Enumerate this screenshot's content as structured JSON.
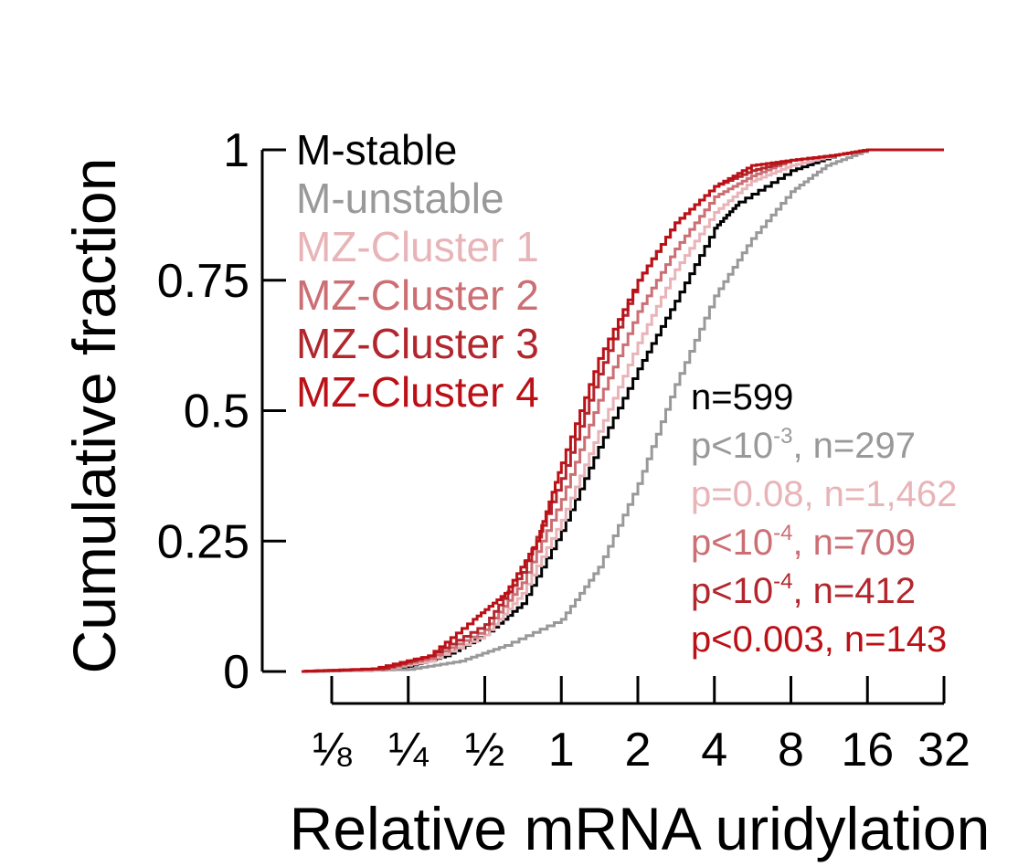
{
  "chart_data": {
    "type": "line",
    "subtype": "cumulative-distribution",
    "xlabel": "Relative mRNA uridylation",
    "ylabel": "Cumulative fraction",
    "x_scale": "log2",
    "xlim": [
      0.09,
      32
    ],
    "ylim": [
      0,
      1
    ],
    "x_ticks": [
      0.125,
      0.25,
      0.5,
      1,
      2,
      4,
      8,
      16,
      32
    ],
    "x_tick_labels": [
      "⅛",
      "¼",
      "½",
      "1",
      "2",
      "4",
      "8",
      "16",
      "32"
    ],
    "y_ticks": [
      0,
      0.25,
      0.5,
      0.75,
      1
    ],
    "y_tick_labels": [
      "0",
      "0.25",
      "0.5",
      "0.75",
      "1"
    ],
    "grid": false,
    "legend_position": "top-left",
    "series": [
      {
        "name": "M-stable",
        "color": "#000000",
        "stat": "n=599",
        "points": [
          [
            0.09,
            0
          ],
          [
            0.2,
            0.003
          ],
          [
            0.25,
            0.01
          ],
          [
            0.35,
            0.03
          ],
          [
            0.5,
            0.07
          ],
          [
            0.7,
            0.13
          ],
          [
            1,
            0.27
          ],
          [
            1.4,
            0.43
          ],
          [
            2,
            0.58
          ],
          [
            2.8,
            0.71
          ],
          [
            4,
            0.85
          ],
          [
            5,
            0.9
          ],
          [
            8,
            0.96
          ],
          [
            12,
            0.99
          ],
          [
            16,
            1
          ],
          [
            32,
            1
          ]
        ]
      },
      {
        "name": "M-unstable",
        "color": "#999999",
        "stat_prefix": "p<10",
        "stat_exp": "-3",
        "stat_suffix": ", n=297",
        "points": [
          [
            0.09,
            0
          ],
          [
            0.25,
            0.004
          ],
          [
            0.4,
            0.02
          ],
          [
            0.6,
            0.05
          ],
          [
            1,
            0.1
          ],
          [
            1.4,
            0.2
          ],
          [
            2,
            0.36
          ],
          [
            2.8,
            0.55
          ],
          [
            4,
            0.72
          ],
          [
            5.6,
            0.83
          ],
          [
            8,
            0.92
          ],
          [
            11,
            0.97
          ],
          [
            16,
            1
          ],
          [
            32,
            1
          ]
        ]
      },
      {
        "name": "MZ-Cluster 1",
        "color": "#e8b4b8",
        "stat": "p=0.08, n=1,462",
        "points": [
          [
            0.09,
            0
          ],
          [
            0.2,
            0.004
          ],
          [
            0.3,
            0.02
          ],
          [
            0.5,
            0.07
          ],
          [
            0.7,
            0.15
          ],
          [
            1,
            0.29
          ],
          [
            1.4,
            0.46
          ],
          [
            2,
            0.63
          ],
          [
            2.8,
            0.77
          ],
          [
            4,
            0.88
          ],
          [
            5.6,
            0.94
          ],
          [
            8,
            0.97
          ],
          [
            12,
            0.99
          ],
          [
            16,
            1
          ],
          [
            32,
            1
          ]
        ]
      },
      {
        "name": "MZ-Cluster 2",
        "color": "#cc6f74",
        "stat_prefix": "p<10",
        "stat_exp": "-4",
        "stat_suffix": ", n=709",
        "points": [
          [
            0.09,
            0
          ],
          [
            0.2,
            0.005
          ],
          [
            0.3,
            0.025
          ],
          [
            0.5,
            0.08
          ],
          [
            0.7,
            0.17
          ],
          [
            1,
            0.33
          ],
          [
            1.4,
            0.52
          ],
          [
            2,
            0.69
          ],
          [
            2.8,
            0.81
          ],
          [
            4,
            0.91
          ],
          [
            5.6,
            0.95
          ],
          [
            8,
            0.98
          ],
          [
            12,
            0.99
          ],
          [
            16,
            1
          ],
          [
            32,
            1
          ]
        ]
      },
      {
        "name": "MZ-Cluster 3",
        "color": "#b2262d",
        "stat_prefix": "p<10",
        "stat_exp": "-4",
        "stat_suffix": ", n=412",
        "points": [
          [
            0.09,
            0
          ],
          [
            0.2,
            0.006
          ],
          [
            0.3,
            0.03
          ],
          [
            0.5,
            0.09
          ],
          [
            0.7,
            0.19
          ],
          [
            1,
            0.37
          ],
          [
            1.4,
            0.57
          ],
          [
            2,
            0.75
          ],
          [
            2.8,
            0.86
          ],
          [
            4,
            0.93
          ],
          [
            5.6,
            0.96
          ],
          [
            8,
            0.98
          ],
          [
            12,
            0.99
          ],
          [
            16,
            1
          ],
          [
            32,
            1
          ]
        ]
      },
      {
        "name": "MZ-Cluster 4",
        "color": "#bb1016",
        "stat": "p<0.003, n=143",
        "points": [
          [
            0.09,
            0
          ],
          [
            0.18,
            0.005
          ],
          [
            0.3,
            0.03
          ],
          [
            0.45,
            0.1
          ],
          [
            0.6,
            0.15
          ],
          [
            0.8,
            0.25
          ],
          [
            1,
            0.4
          ],
          [
            1.4,
            0.6
          ],
          [
            2,
            0.75
          ],
          [
            2.8,
            0.86
          ],
          [
            4,
            0.93
          ],
          [
            5.6,
            0.97
          ],
          [
            8,
            0.98
          ],
          [
            12,
            0.99
          ],
          [
            16,
            1
          ],
          [
            32,
            1
          ]
        ]
      }
    ]
  }
}
